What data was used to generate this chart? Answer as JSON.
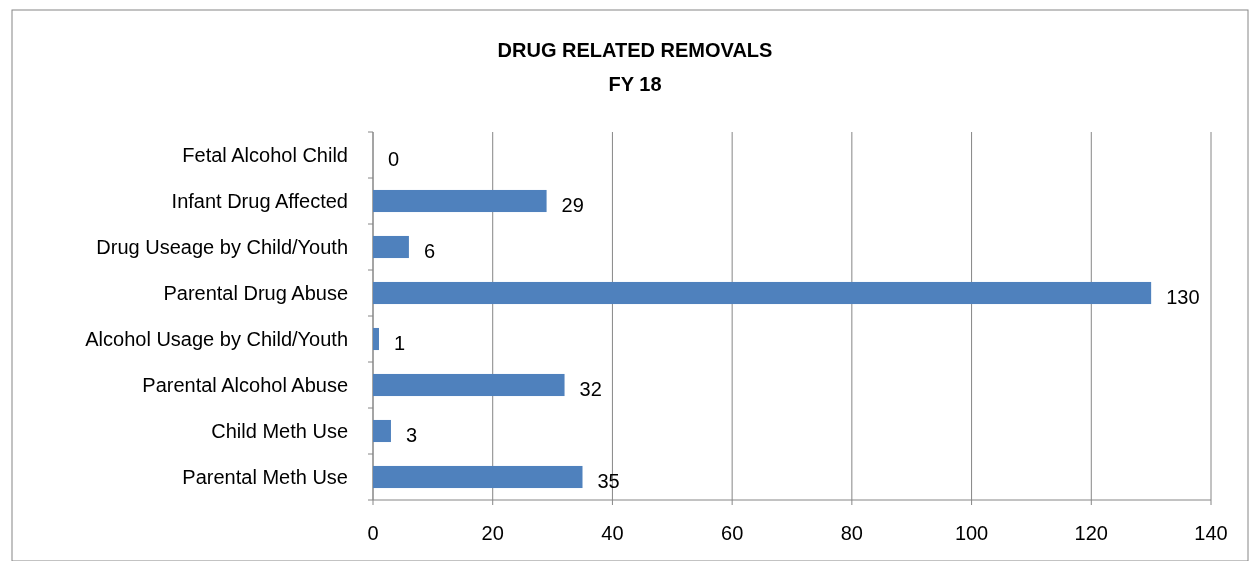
{
  "chart_data": {
    "type": "bar",
    "orientation": "horizontal",
    "title": "DRUG RELATED REMOVALS",
    "subtitle": "FY 18",
    "categories": [
      "Fetal Alcohol Child",
      "Infant Drug Affected",
      "Drug Useage by Child/Youth",
      "Parental Drug Abuse",
      "Alcohol Usage by Child/Youth",
      "Parental Alcohol Abuse",
      "Child Meth Use",
      "Parental Meth Use"
    ],
    "values": [
      0,
      29,
      6,
      130,
      1,
      32,
      3,
      35
    ],
    "color": "#4f81bd",
    "xlim": [
      0,
      140
    ],
    "xticks": [
      0,
      20,
      40,
      60,
      80,
      100,
      120,
      140
    ],
    "grid": "x",
    "data_labels": true
  }
}
